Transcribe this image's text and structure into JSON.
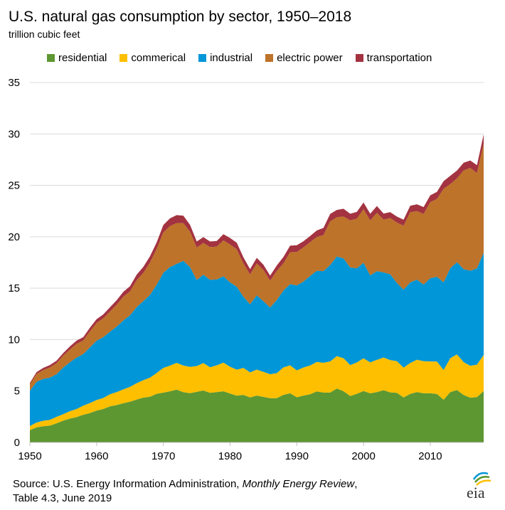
{
  "chart_data": {
    "type": "area",
    "stacked": true,
    "title": "U.S. natural gas consumption by sector, 1950–2018",
    "subtitle": "trillion cubic feet",
    "xlabel": "",
    "ylabel": "",
    "xlim": [
      1950,
      2018
    ],
    "ylim": [
      0,
      35
    ],
    "yticks": [
      "0",
      "5",
      "10",
      "15",
      "20",
      "25",
      "30",
      "35"
    ],
    "xticks": [
      "1950",
      "1960",
      "1970",
      "1980",
      "1990",
      "2000",
      "2010"
    ],
    "grid": true,
    "legend_position": "top",
    "x_start": 1950,
    "series": [
      {
        "name": "residential",
        "color": "#5d9732",
        "values": [
          1.2,
          1.46,
          1.58,
          1.63,
          1.86,
          2.12,
          2.32,
          2.46,
          2.69,
          2.86,
          3.1,
          3.25,
          3.51,
          3.63,
          3.81,
          3.96,
          4.17,
          4.36,
          4.45,
          4.73,
          4.84,
          4.97,
          5.13,
          4.88,
          4.79,
          4.92,
          5.05,
          4.82,
          4.9,
          4.97,
          4.75,
          4.55,
          4.63,
          4.38,
          4.56,
          4.43,
          4.31,
          4.31,
          4.63,
          4.78,
          4.39,
          4.56,
          4.69,
          4.96,
          4.85,
          4.85,
          5.24,
          4.98,
          4.52,
          4.73,
          5.0,
          4.77,
          4.89,
          5.08,
          4.87,
          4.83,
          4.37,
          4.72,
          4.89,
          4.78,
          4.78,
          4.71,
          4.15,
          4.9,
          5.09,
          4.61,
          4.35,
          4.41,
          4.99
        ]
      },
      {
        "name": "commerical",
        "color": "#fdbf00",
        "values": [
          0.39,
          0.48,
          0.53,
          0.56,
          0.63,
          0.63,
          0.72,
          0.79,
          0.89,
          0.97,
          1.02,
          1.07,
          1.18,
          1.26,
          1.35,
          1.44,
          1.59,
          1.69,
          1.85,
          2.02,
          2.4,
          2.5,
          2.61,
          2.6,
          2.56,
          2.51,
          2.67,
          2.5,
          2.6,
          2.79,
          2.61,
          2.52,
          2.61,
          2.43,
          2.52,
          2.43,
          2.32,
          2.43,
          2.67,
          2.72,
          2.62,
          2.73,
          2.8,
          2.86,
          2.9,
          3.03,
          3.16,
          3.21,
          3.0,
          3.05,
          3.18,
          3.02,
          3.14,
          3.18,
          3.13,
          3.07,
          2.9,
          3.01,
          3.15,
          3.12,
          3.1,
          3.16,
          2.9,
          3.3,
          3.47,
          3.2,
          3.1,
          3.16,
          3.52
        ]
      },
      {
        "name": "industrial",
        "color": "#0096d7",
        "values": [
          3.43,
          3.96,
          4.07,
          4.11,
          4.15,
          4.54,
          4.76,
          5.0,
          5.01,
          5.41,
          5.77,
          5.92,
          6.07,
          6.38,
          6.7,
          6.96,
          7.4,
          7.69,
          8.05,
          8.59,
          9.25,
          9.59,
          9.62,
          10.18,
          9.7,
          8.36,
          8.6,
          8.49,
          8.35,
          8.4,
          8.2,
          8.07,
          6.93,
          6.62,
          7.23,
          6.87,
          6.5,
          7.1,
          7.48,
          7.89,
          8.26,
          8.36,
          8.7,
          8.87,
          8.91,
          9.38,
          9.69,
          9.71,
          9.49,
          9.16,
          9.29,
          8.46,
          8.62,
          8.27,
          8.36,
          7.61,
          7.59,
          7.83,
          7.79,
          7.45,
          8.09,
          8.24,
          8.52,
          8.74,
          8.97,
          9.04,
          9.25,
          9.36,
          9.94
        ]
      },
      {
        "name": "electric power",
        "color": "#bd732a",
        "values": [
          0.63,
          0.76,
          0.86,
          0.99,
          1.07,
          1.15,
          1.24,
          1.34,
          1.33,
          1.56,
          1.73,
          1.83,
          1.97,
          2.12,
          2.32,
          2.32,
          2.61,
          2.75,
          3.15,
          3.49,
          3.93,
          3.99,
          3.98,
          3.66,
          3.44,
          3.16,
          3.08,
          3.19,
          3.19,
          3.49,
          3.68,
          3.64,
          3.23,
          2.91,
          3.11,
          3.04,
          2.6,
          2.84,
          2.64,
          3.11,
          3.25,
          3.32,
          3.29,
          3.28,
          3.51,
          4.24,
          3.81,
          4.07,
          4.59,
          4.82,
          5.21,
          5.34,
          5.67,
          5.14,
          5.46,
          5.87,
          6.22,
          6.84,
          6.67,
          6.87,
          7.39,
          7.57,
          9.11,
          8.19,
          8.15,
          9.61,
          9.99,
          9.27,
          10.63
        ]
      },
      {
        "name": "transportation",
        "color": "#a33340",
        "values": [
          0.13,
          0.18,
          0.21,
          0.23,
          0.24,
          0.25,
          0.3,
          0.31,
          0.32,
          0.36,
          0.36,
          0.38,
          0.41,
          0.44,
          0.47,
          0.5,
          0.54,
          0.58,
          0.61,
          0.63,
          0.72,
          0.74,
          0.77,
          0.73,
          0.67,
          0.59,
          0.56,
          0.54,
          0.54,
          0.6,
          0.64,
          0.64,
          0.6,
          0.51,
          0.53,
          0.5,
          0.49,
          0.52,
          0.61,
          0.63,
          0.66,
          0.6,
          0.59,
          0.64,
          0.69,
          0.72,
          0.71,
          0.75,
          0.64,
          0.66,
          0.66,
          0.65,
          0.67,
          0.59,
          0.57,
          0.58,
          0.58,
          0.62,
          0.65,
          0.67,
          0.67,
          0.69,
          0.73,
          0.8,
          0.76,
          0.74,
          0.73,
          0.76,
          0.88
        ]
      }
    ]
  },
  "source": {
    "prefix": "Source: U.S. Energy Information Administration, ",
    "italic": "Monthly Energy Review",
    "suffix": ",",
    "line2": "Table 4.3, June 2019"
  },
  "logo": {
    "text": "eia",
    "colors": [
      "#0096d7",
      "#5d9732",
      "#fdbf00"
    ]
  }
}
